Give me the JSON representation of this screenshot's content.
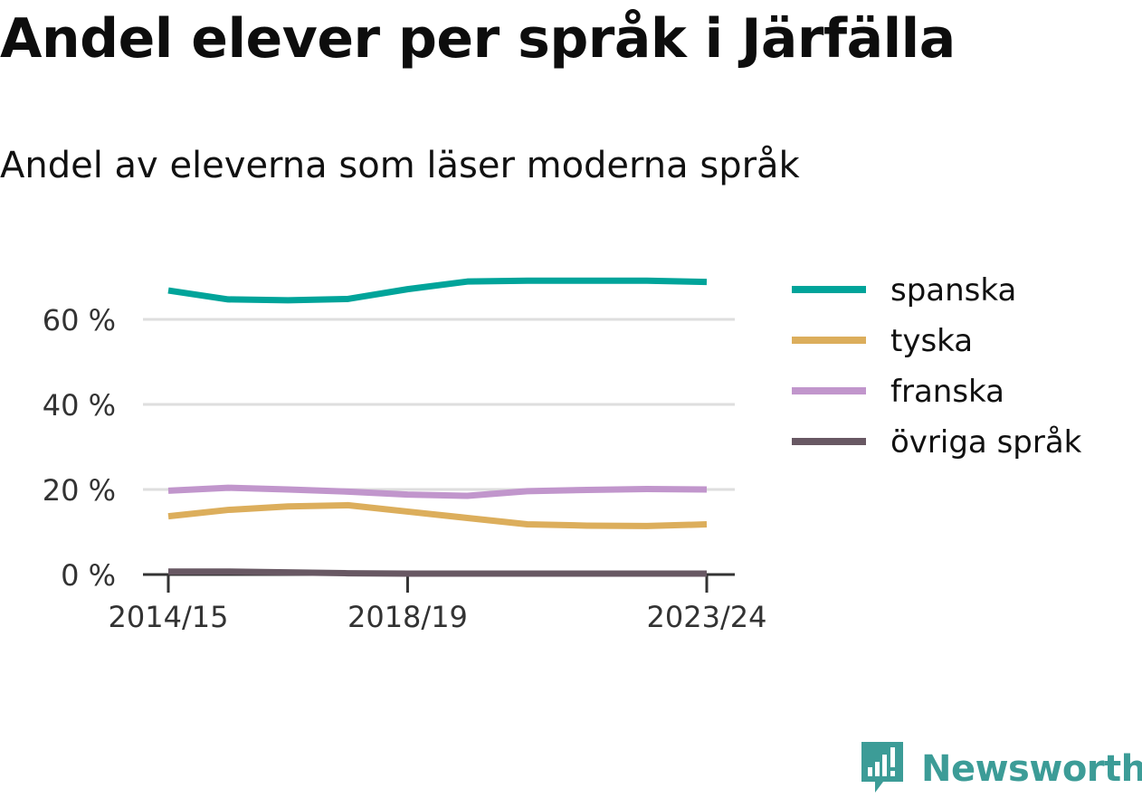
{
  "chart_data": {
    "type": "line",
    "title": "Andel elever per språk i Järfälla",
    "subtitle": "Andel av eleverna som läser moderna språk",
    "x": [
      "2014/15",
      "2015/16",
      "2016/17",
      "2017/18",
      "2018/19",
      "2019/20",
      "2020/21",
      "2021/22",
      "2022/23",
      "2023/24"
    ],
    "x_tick_labels": [
      "2014/15",
      "2018/19",
      "2023/24"
    ],
    "y_ticks": [
      0,
      20,
      40,
      60
    ],
    "y_tick_labels": [
      "0 %",
      "20 %",
      "40 %",
      "60 %"
    ],
    "ylim": [
      0,
      70
    ],
    "grid": true,
    "legend_position": "right",
    "series": [
      {
        "name": "spanska",
        "color": "#00a49a",
        "values": [
          66.8,
          64.7,
          64.5,
          64.8,
          67.1,
          68.9,
          69.1,
          69.1,
          69.1,
          68.8
        ]
      },
      {
        "name": "tyska",
        "color": "#dcae5c",
        "values": [
          13.7,
          15.2,
          16.0,
          16.3,
          14.8,
          13.3,
          11.8,
          11.5,
          11.4,
          11.8
        ]
      },
      {
        "name": "franska",
        "color": "#c196cc",
        "values": [
          19.7,
          20.4,
          20.0,
          19.5,
          18.8,
          18.5,
          19.6,
          19.9,
          20.1,
          20.0
        ]
      },
      {
        "name": "övriga språk",
        "color": "#685863",
        "values": [
          0.7,
          0.7,
          0.5,
          0.3,
          0.2,
          0.2,
          0.2,
          0.2,
          0.2,
          0.2
        ]
      }
    ]
  },
  "brand": {
    "name": "Newsworthy",
    "color": "#3c9c97",
    "icon": "newsworthy-logo-icon"
  }
}
